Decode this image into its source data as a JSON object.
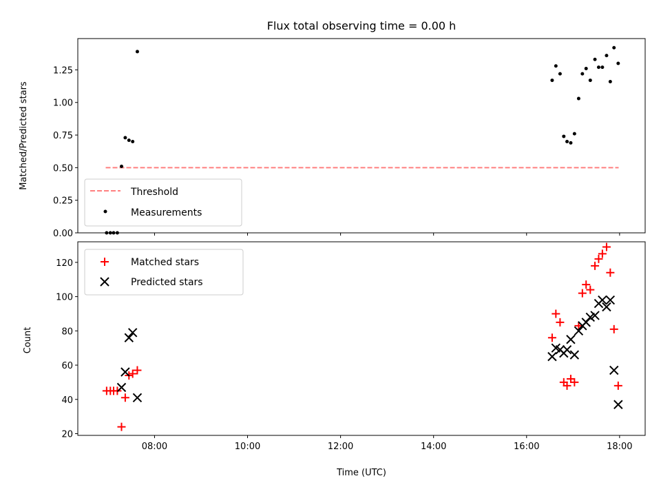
{
  "chart_data": [
    {
      "type": "scatter",
      "title": "Flux total observing time = 0.00 h",
      "xlabel": "",
      "ylabel": "Matched/Predicted stars",
      "xlim_hours": [
        6.35,
        18.55
      ],
      "ylim": [
        0,
        1.49
      ],
      "yticks": [
        0.0,
        0.25,
        0.5,
        0.75,
        1.0,
        1.25
      ],
      "ytick_labels": [
        "0.00",
        "0.25",
        "0.50",
        "0.75",
        "1.00",
        "1.25"
      ],
      "xticks_hours": [
        8,
        10,
        12,
        14,
        16,
        18
      ],
      "threshold": {
        "name": "Threshold",
        "y": 0.5,
        "x_range_hours": [
          6.95,
          17.98
        ],
        "color": "#ff7f7f",
        "style": "dashed"
      },
      "series": [
        {
          "name": "Measurements",
          "marker": "dot",
          "color": "#000000",
          "x_hours": [
            6.97,
            7.05,
            7.12,
            7.2,
            7.29,
            7.37,
            7.45,
            7.53,
            7.63,
            16.55,
            16.63,
            16.72,
            16.8,
            16.87,
            16.95,
            17.03,
            17.12,
            17.2,
            17.28,
            17.37,
            17.47,
            17.55,
            17.63,
            17.72,
            17.8,
            17.88,
            17.97
          ],
          "y": [
            0.0,
            0.0,
            0.0,
            0.0,
            0.51,
            0.73,
            0.71,
            0.7,
            1.39,
            1.17,
            1.28,
            1.22,
            0.74,
            0.7,
            0.69,
            0.76,
            1.03,
            1.22,
            1.26,
            1.17,
            1.33,
            1.27,
            1.27,
            1.36,
            1.16,
            1.42,
            1.3
          ]
        }
      ],
      "legend": {
        "position": "lower-left",
        "entries": [
          "Threshold",
          "Measurements"
        ]
      },
      "grid": false
    },
    {
      "type": "scatter",
      "title": "",
      "xlabel": "Time (UTC)",
      "ylabel": "Count",
      "xlim_hours": [
        6.35,
        18.55
      ],
      "ylim": [
        19,
        132
      ],
      "yticks": [
        20,
        40,
        60,
        80,
        100,
        120
      ],
      "ytick_labels": [
        "20",
        "40",
        "60",
        "80",
        "100",
        "120"
      ],
      "xticks_hours": [
        8,
        10,
        12,
        14,
        16,
        18
      ],
      "xtick_labels": [
        "08:00",
        "10:00",
        "12:00",
        "14:00",
        "16:00",
        "18:00"
      ],
      "series": [
        {
          "name": "Matched stars",
          "marker": "plus",
          "color": "#ff0000",
          "x_hours": [
            6.97,
            7.05,
            7.12,
            7.2,
            7.29,
            7.37,
            7.45,
            7.53,
            7.63,
            16.55,
            16.63,
            16.72,
            16.8,
            16.87,
            16.95,
            17.03,
            17.12,
            17.2,
            17.28,
            17.37,
            17.47,
            17.55,
            17.63,
            17.72,
            17.8,
            17.88,
            17.97
          ],
          "y": [
            45,
            45,
            45,
            45,
            24,
            41,
            54,
            55,
            57,
            76,
            90,
            85,
            50,
            48,
            52,
            50,
            83,
            102,
            107,
            104,
            118,
            122,
            125,
            129,
            114,
            81,
            48
          ]
        },
        {
          "name": "Predicted stars",
          "marker": "x",
          "color": "#000000",
          "x_hours": [
            7.29,
            7.37,
            7.45,
            7.53,
            7.63,
            16.55,
            16.63,
            16.72,
            16.8,
            16.87,
            16.95,
            17.03,
            17.12,
            17.2,
            17.28,
            17.37,
            17.47,
            17.55,
            17.63,
            17.72,
            17.8,
            17.88,
            17.97
          ],
          "y": [
            47,
            56,
            76,
            79,
            41,
            65,
            70,
            69,
            67,
            69,
            75,
            66,
            80,
            83,
            85,
            88,
            89,
            96,
            98,
            94,
            98,
            57,
            37
          ]
        }
      ],
      "legend": {
        "position": "upper-left",
        "entries": [
          "Matched stars",
          "Predicted stars"
        ]
      },
      "grid": false
    }
  ]
}
